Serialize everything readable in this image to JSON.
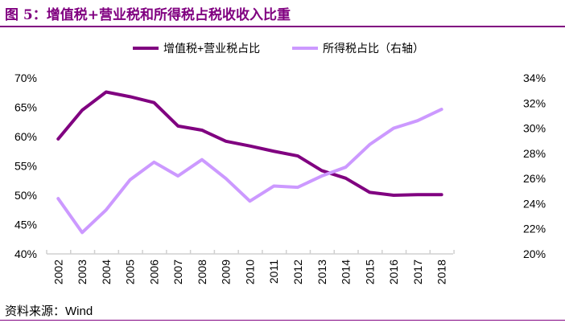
{
  "title": "图 5：增值税+营业税和所得税占税收收入比重",
  "source": "资料来源：Wind",
  "chart_data": {
    "type": "line",
    "title": "",
    "categories": [
      "2002",
      "2003",
      "2004",
      "2005",
      "2006",
      "2007",
      "2008",
      "2009",
      "2010",
      "2011",
      "2012",
      "2013",
      "2014",
      "2015",
      "2016",
      "2017",
      "2018"
    ],
    "y_left": {
      "range": [
        40,
        70
      ],
      "ticks": [
        "40%",
        "45%",
        "50%",
        "55%",
        "60%",
        "65%",
        "70%"
      ]
    },
    "y_right": {
      "range": [
        20,
        34
      ],
      "ticks": [
        "20%",
        "22%",
        "24%",
        "26%",
        "28%",
        "30%",
        "32%",
        "34%"
      ]
    },
    "legend_position": "top",
    "grid": false,
    "series": [
      {
        "name": "增值税+营业税占比",
        "axis": "left",
        "color": "#800080",
        "values": [
          59.6,
          64.5,
          67.6,
          66.8,
          65.8,
          61.8,
          61.1,
          59.2,
          58.4,
          57.5,
          56.7,
          54.2,
          52.9,
          50.5,
          50.0,
          50.1,
          50.1
        ]
      },
      {
        "name": "所得税占比（右轴）",
        "axis": "right",
        "color": "#CC99FF",
        "values": [
          24.4,
          21.7,
          23.5,
          25.9,
          27.3,
          26.2,
          27.5,
          26.0,
          24.2,
          25.4,
          25.3,
          26.2,
          26.9,
          28.7,
          30.0,
          30.6,
          31.5
        ]
      }
    ]
  }
}
